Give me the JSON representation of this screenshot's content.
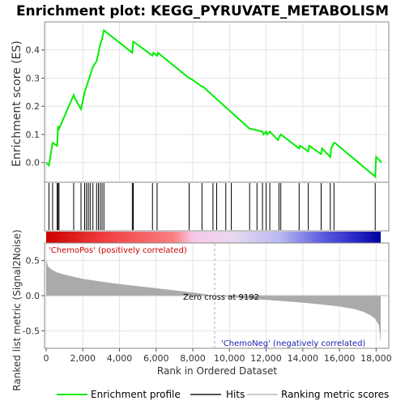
{
  "chart_data": {
    "type": "line",
    "title": "Enrichment plot: KEGG_PYRUVATE_METABOLISM",
    "top_panel": {
      "ylabel": "Enrichment score (ES)",
      "ylim": [
        -0.07,
        0.5
      ],
      "yticks": [
        0.0,
        0.1,
        0.2,
        0.3,
        0.4
      ],
      "ytick_labels": [
        "0.0",
        "0.1",
        "0.2",
        "0.3",
        "0.4"
      ],
      "series": [
        {
          "name": "Enrichment profile",
          "color": "#00ee00",
          "x": [
            0,
            150,
            350,
            600,
            650,
            700,
            1500,
            1550,
            1900,
            2100,
            2200,
            2300,
            2400,
            2550,
            2750,
            2850,
            2950,
            3050,
            3150,
            4700,
            4750,
            5800,
            5850,
            6050,
            6100,
            7800,
            7850,
            8500,
            8550,
            11100,
            11150,
            11800,
            11850,
            12000,
            12050,
            12200,
            12650,
            12700,
            12800,
            13800,
            13850,
            14300,
            14350,
            15000,
            15050,
            15500,
            15550,
            15700,
            15750,
            17950,
            18000,
            18300
          ],
          "y": [
            0.0,
            -0.01,
            0.07,
            0.06,
            0.13,
            0.12,
            0.24,
            0.23,
            0.19,
            0.25,
            0.27,
            0.29,
            0.31,
            0.34,
            0.36,
            0.39,
            0.42,
            0.44,
            0.47,
            0.39,
            0.43,
            0.38,
            0.39,
            0.38,
            0.39,
            0.3,
            0.3,
            0.27,
            0.27,
            0.12,
            0.12,
            0.11,
            0.1,
            0.11,
            0.1,
            0.11,
            0.08,
            0.09,
            0.1,
            0.05,
            0.06,
            0.04,
            0.06,
            0.03,
            0.05,
            0.02,
            0.05,
            0.07,
            0.07,
            -0.05,
            0.02,
            0.0
          ]
        }
      ]
    },
    "hits_panel": {
      "hit_positions": [
        150,
        350,
        600,
        650,
        700,
        1500,
        1900,
        2100,
        2200,
        2300,
        2400,
        2550,
        2750,
        2850,
        2950,
        3050,
        3150,
        4700,
        4750,
        5800,
        6050,
        7800,
        8500,
        9100,
        9300,
        9800,
        10100,
        11100,
        11500,
        11800,
        12000,
        12200,
        12700,
        12800,
        13800,
        14300,
        15000,
        15500,
        15700,
        17950
      ]
    },
    "metric_panel": {
      "ylabel": "Ranked list metric (Signal2Noise)",
      "ylim": [
        -0.75,
        0.75
      ],
      "yticks": [
        -0.5,
        0.0,
        0.5
      ],
      "ytick_labels": [
        "-0.5",
        "0.0",
        "0.5"
      ],
      "zero_cross_label": "Zero cross at 9192",
      "zero_cross": 9192,
      "pos_label": "'ChemoPos' (positively correlated)",
      "neg_label": "'ChemoNeg' (negatively correlated)",
      "profile_x": [
        0,
        100,
        300,
        600,
        1000,
        1500,
        2000,
        3000,
        4000,
        5000,
        6000,
        7000,
        8000,
        9192,
        10000,
        11000,
        12000,
        13000,
        14000,
        15000,
        16000,
        16800,
        17300,
        17700,
        17950,
        18150,
        18250
      ],
      "profile_y": [
        0.52,
        0.42,
        0.37,
        0.33,
        0.3,
        0.27,
        0.24,
        0.2,
        0.165,
        0.135,
        0.105,
        0.075,
        0.045,
        0.0,
        -0.02,
        -0.04,
        -0.06,
        -0.08,
        -0.1,
        -0.125,
        -0.155,
        -0.19,
        -0.23,
        -0.28,
        -0.33,
        -0.42,
        -0.66
      ]
    },
    "xlabel": "Rank in Ordered Dataset",
    "xlim": [
      0,
      18250
    ],
    "xticks": [
      0,
      2000,
      4000,
      6000,
      8000,
      10000,
      12000,
      14000,
      16000,
      18000
    ],
    "xtick_labels": [
      "0",
      "2,000",
      "4,000",
      "6,000",
      "8,000",
      "10,000",
      "12,000",
      "14,000",
      "16,000",
      "18,000"
    ],
    "legend": {
      "placement": "bottom",
      "entries": [
        {
          "label": "Enrichment profile",
          "color": "#00ee00"
        },
        {
          "label": "Hits",
          "color": "#555555"
        },
        {
          "label": "Ranking metric scores",
          "color": "#cccccc"
        }
      ]
    },
    "colors": {
      "profile": "#00ee00",
      "metric_fill": "#aaaaaa",
      "zero_line": "#bbbbbb",
      "hit_line": "#000000",
      "pos_text": "#cc0000",
      "neg_text": "#1a1aaa"
    }
  }
}
